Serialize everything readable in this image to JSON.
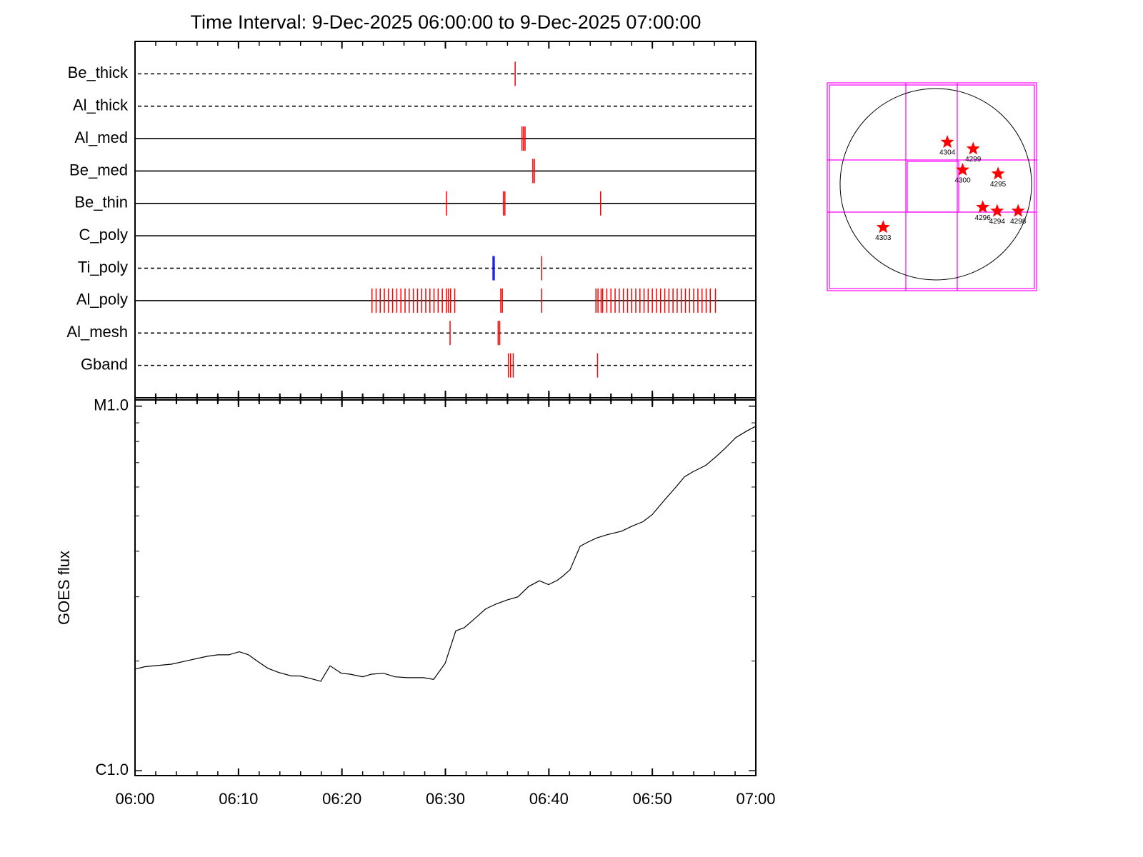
{
  "chart_data": [
    {
      "type": "event",
      "title": "Time Interval:  9-Dec-2025 06:00:00 to  9-Dec-2025 07:00:00",
      "xlim": [
        0,
        60
      ],
      "rows": [
        {
          "name": "Be_thick",
          "line": "dashed",
          "color": "#ff0000",
          "events": [
            36.74
          ]
        },
        {
          "name": "Al_thick",
          "line": "dashed",
          "color": "#ff0000",
          "events": []
        },
        {
          "name": "Al_med",
          "line": "solid",
          "color": "#ff0000",
          "events": [
            37.4,
            37.55,
            37.7
          ]
        },
        {
          "name": "Be_med",
          "line": "solid",
          "color": "#ff0000",
          "events": [
            38.45,
            38.6
          ]
        },
        {
          "name": "Be_thin",
          "line": "solid",
          "color": "#ff0000",
          "events": [
            30.1,
            35.6,
            35.75,
            45.0
          ]
        },
        {
          "name": "C_poly",
          "line": "solid",
          "color": "#ff0000",
          "events": []
        },
        {
          "name": "Ti_poly",
          "line": "dashed",
          "color": "#ff0000",
          "events": [
            39.3
          ],
          "extra_events": [
            34.6,
            34.72
          ],
          "extra_color": "#0000ff"
        },
        {
          "name": "Al_poly",
          "line": "solid",
          "color": "#ff0000",
          "events": [
            22.9,
            23.3,
            23.7,
            24.1,
            24.5,
            24.9,
            25.3,
            25.7,
            26.1,
            26.5,
            26.9,
            27.3,
            27.7,
            28.1,
            28.5,
            28.9,
            29.3,
            29.7,
            30.1,
            30.3,
            30.5,
            30.9,
            35.35,
            35.5,
            39.3,
            44.55,
            44.75,
            45.05,
            45.2,
            45.6,
            46.0,
            46.4,
            46.8,
            47.2,
            47.6,
            48.0,
            48.4,
            48.8,
            49.2,
            49.6,
            50.0,
            50.4,
            50.8,
            51.2,
            51.6,
            52.0,
            52.4,
            52.8,
            53.2,
            53.6,
            54.0,
            54.4,
            54.8,
            55.2,
            55.6,
            56.1
          ]
        },
        {
          "name": "Al_mesh",
          "line": "dashed",
          "color": "#ff0000",
          "events": [
            30.45,
            35.1,
            35.25
          ]
        },
        {
          "name": "Gband",
          "line": "dashed",
          "color": "#ff0000",
          "events": [
            36.1,
            36.3,
            36.55,
            44.7
          ]
        }
      ]
    },
    {
      "type": "line",
      "ylabel": "GOES flux",
      "log": true,
      "color": "#000000",
      "xlim": [
        0,
        60
      ],
      "xticks": [
        {
          "value": 0,
          "label": "06:00"
        },
        {
          "value": 10,
          "label": "06:10"
        },
        {
          "value": 20,
          "label": "06:20"
        },
        {
          "value": 30,
          "label": "06:30"
        },
        {
          "value": 40,
          "label": "06:40"
        },
        {
          "value": 50,
          "label": "06:50"
        },
        {
          "value": 60,
          "label": "07:00"
        }
      ],
      "ylim": [
        9.7e-07,
        1.04e-05
      ],
      "yticks": [
        {
          "value": 1e-06,
          "label": "C1.0"
        },
        {
          "value": 1e-05,
          "label": "M1.0"
        }
      ],
      "x": [
        0,
        0.97,
        3.52,
        4.9,
        6.97,
        8.01,
        9.05,
        10.08,
        10.98,
        11.81,
        12.84,
        13.88,
        15.12,
        15.95,
        16.99,
        17.95,
        18.85,
        19.95,
        20.78,
        22.02,
        22.85,
        24.03,
        25.13,
        26.31,
        27.0,
        27.89,
        28.86,
        29.97,
        31.0,
        31.83,
        32.87,
        33.9,
        34.94,
        35.97,
        37.01,
        38.04,
        39.08,
        39.98,
        40.81,
        41.36,
        42.05,
        43.02,
        43.71,
        44.61,
        45.64,
        47.02,
        48.06,
        49.09,
        49.99,
        51.16,
        52.2,
        53.1,
        53.93,
        55.17,
        56.2,
        57.03,
        58.07,
        59.1,
        60.0
      ],
      "values": [
        1.9e-06,
        1.93e-06,
        1.96e-06,
        2e-06,
        2.06e-06,
        2.08e-06,
        2.08e-06,
        2.12e-06,
        2.08e-06,
        2e-06,
        1.91e-06,
        1.86e-06,
        1.82e-06,
        1.82e-06,
        1.79e-06,
        1.76e-06,
        1.94e-06,
        1.85e-06,
        1.84e-06,
        1.81e-06,
        1.84e-06,
        1.85e-06,
        1.81e-06,
        1.8e-06,
        1.8e-06,
        1.8e-06,
        1.78e-06,
        1.97e-06,
        2.42e-06,
        2.47e-06,
        2.62e-06,
        2.78e-06,
        2.87e-06,
        2.94e-06,
        3e-06,
        3.2e-06,
        3.32e-06,
        3.24e-06,
        3.33e-06,
        3.42e-06,
        3.56e-06,
        4.13e-06,
        4.23e-06,
        4.35e-06,
        4.44e-06,
        4.54e-06,
        4.69e-06,
        4.82e-06,
        5.04e-06,
        5.52e-06,
        5.96e-06,
        6.4e-06,
        6.61e-06,
        6.88e-06,
        7.29e-06,
        7.66e-06,
        8.2e-06,
        8.54e-06,
        8.81e-06
      ]
    },
    {
      "type": "map",
      "color": "#ff0000",
      "regions": [
        {
          "label": "4304",
          "x": 0.12,
          "y": 0.44
        },
        {
          "label": "4299",
          "x": 0.39,
          "y": 0.37
        },
        {
          "label": "4300",
          "x": 0.28,
          "y": 0.15
        },
        {
          "label": "4295",
          "x": 0.65,
          "y": 0.11
        },
        {
          "label": "4296",
          "x": 0.49,
          "y": -0.24
        },
        {
          "label": "4294",
          "x": 0.64,
          "y": -0.28
        },
        {
          "label": "4298",
          "x": 0.86,
          "y": -0.28
        },
        {
          "label": "4303",
          "x": -0.55,
          "y": -0.45
        }
      ]
    }
  ]
}
